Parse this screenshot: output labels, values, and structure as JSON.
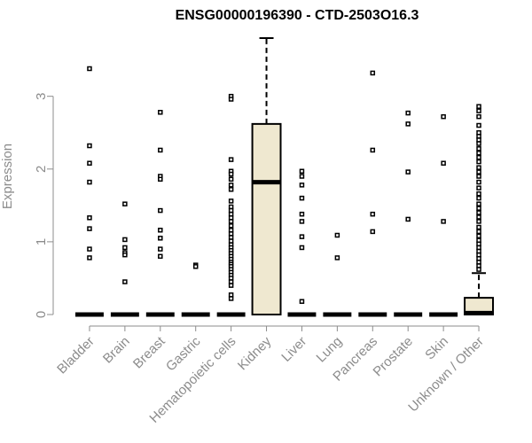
{
  "chart_data": {
    "type": "box",
    "title": "ENSG00000196390 - CTD-2503O16.3",
    "ylabel": "Expression",
    "ylim": [
      0,
      3.8
    ],
    "yticks": [
      0,
      1,
      2,
      3
    ],
    "grid": false,
    "legend": "none",
    "colors": {
      "box_fill": "#efe8d0",
      "stroke": "#000000",
      "axis_text": "#8c8c8c"
    },
    "categories": [
      "Bladder",
      "Brain",
      "Breast",
      "Gastric",
      "Hematopoietic cells",
      "Kidney",
      "Liver",
      "Lung",
      "Pancreas",
      "Prostate",
      "Skin",
      "Unknown / Other"
    ],
    "boxes": [
      {
        "q1": 0,
        "median": 0,
        "q3": 0,
        "whisker_low": 0,
        "whisker_high": 0,
        "outliers": [
          3.38,
          2.32,
          2.08,
          1.82,
          1.33,
          1.18,
          0.9,
          0.78
        ]
      },
      {
        "q1": 0,
        "median": 0,
        "q3": 0,
        "whisker_low": 0,
        "whisker_high": 0,
        "outliers": [
          1.52,
          1.03,
          0.92,
          0.85,
          0.82,
          0.45
        ]
      },
      {
        "q1": 0,
        "median": 0,
        "q3": 0,
        "whisker_low": 0,
        "whisker_high": 0,
        "outliers": [
          2.78,
          2.26,
          1.9,
          1.86,
          1.43,
          1.16,
          1.05,
          0.9,
          0.8
        ]
      },
      {
        "q1": 0,
        "median": 0,
        "q3": 0,
        "whisker_low": 0,
        "whisker_high": 0,
        "outliers": [
          0.68,
          0.66
        ]
      },
      {
        "q1": 0,
        "median": 0,
        "q3": 0,
        "whisker_low": 0,
        "whisker_high": 0,
        "outliers": [
          3.0,
          2.96,
          2.13,
          1.97,
          1.93,
          1.86,
          1.78,
          1.72,
          1.56,
          1.48,
          1.43,
          1.38,
          1.33,
          1.28,
          1.22,
          1.16,
          1.11,
          1.06,
          1.01,
          0.96,
          0.92,
          0.88,
          0.84,
          0.8,
          0.76,
          0.72,
          0.69,
          0.66,
          0.62,
          0.58,
          0.54,
          0.5,
          0.45,
          0.4,
          0.27,
          0.22
        ]
      },
      {
        "q1": 0,
        "median": 1.82,
        "q3": 2.62,
        "whisker_low": 0,
        "whisker_high": 3.8,
        "outliers": []
      },
      {
        "q1": 0,
        "median": 0,
        "q3": 0,
        "whisker_low": 0,
        "whisker_high": 0,
        "outliers": [
          1.97,
          1.9,
          1.78,
          1.6,
          1.38,
          1.28,
          1.07,
          0.92,
          0.18
        ]
      },
      {
        "q1": 0,
        "median": 0,
        "q3": 0,
        "whisker_low": 0,
        "whisker_high": 0,
        "outliers": [
          1.09,
          0.78
        ]
      },
      {
        "q1": 0,
        "median": 0,
        "q3": 0,
        "whisker_low": 0,
        "whisker_high": 0,
        "outliers": [
          3.32,
          2.26,
          1.38,
          1.14
        ]
      },
      {
        "q1": 0,
        "median": 0,
        "q3": 0,
        "whisker_low": 0,
        "whisker_high": 0,
        "outliers": [
          2.77,
          2.62,
          1.96,
          1.31
        ]
      },
      {
        "q1": 0,
        "median": 0,
        "q3": 0,
        "whisker_low": 0,
        "whisker_high": 0,
        "outliers": [
          2.72,
          2.08,
          1.28
        ]
      },
      {
        "q1": 0,
        "median": 0.02,
        "q3": 0.23,
        "whisker_low": 0,
        "whisker_high": 0.57,
        "outliers": [
          2.86,
          2.8,
          2.72,
          2.6,
          2.5,
          2.45,
          2.4,
          2.35,
          2.28,
          2.22,
          2.16,
          2.1,
          2.02,
          1.96,
          1.9,
          1.82,
          1.74,
          1.66,
          1.6,
          1.52,
          1.46,
          1.4,
          1.34,
          1.28,
          1.2,
          1.14,
          1.08,
          1.02,
          0.97,
          0.92,
          0.87,
          0.82,
          0.77,
          0.72,
          0.67,
          0.62
        ]
      }
    ]
  }
}
